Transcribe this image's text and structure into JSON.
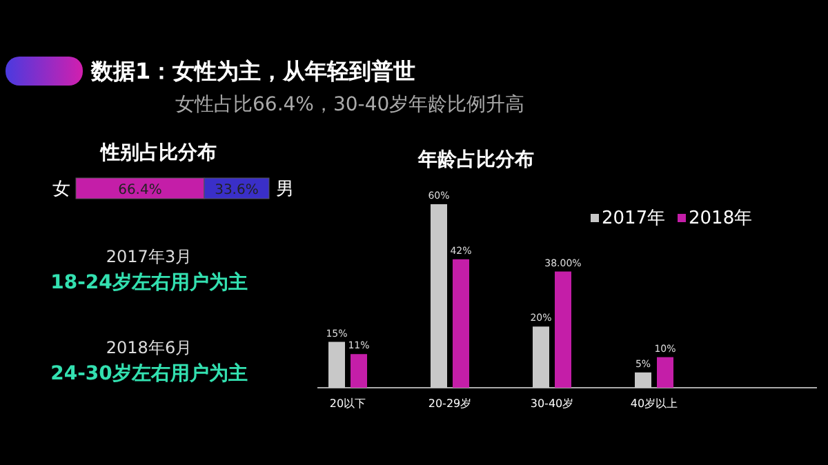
{
  "chart_data": [
    {
      "type": "other",
      "title": "数据1：女性为主，从年轻到普世",
      "subtitle": "女性占比66.4%，30-40岁年龄比例升高"
    },
    {
      "type": "bar",
      "orientation": "horizontal",
      "stacked": true,
      "title": "性别占比分布",
      "categories": [
        null
      ],
      "series": [
        {
          "name": "女",
          "color": "#c41ea8",
          "values": [
            66.4
          ],
          "value_labels": [
            "66.4%"
          ]
        },
        {
          "name": "男",
          "color": "#3a2fc8",
          "values": [
            33.6
          ],
          "value_labels": [
            "33.6%"
          ]
        }
      ]
    },
    {
      "type": "other",
      "annotations": [
        "2017年3月",
        "18-24岁左右用户为主",
        "2018年6月",
        "24-30岁左右用户为主"
      ]
    },
    {
      "type": "bar",
      "title": "年龄占比分布",
      "categories": [
        "20以下",
        "20-29岁",
        "30-40岁",
        "40岁以上"
      ],
      "legend": "top right",
      "series": [
        {
          "name": "2017年",
          "color": "#c8c8c8",
          "values": [
            15,
            60,
            20,
            5
          ],
          "value_labels": [
            "15%",
            "60%",
            "20%",
            "5%"
          ]
        },
        {
          "name": "2018年",
          "color": "#c41ea8",
          "values": [
            11,
            42,
            38,
            10
          ],
          "value_labels": [
            "11%",
            "42%",
            "38.00%",
            "10%"
          ]
        }
      ]
    }
  ]
}
